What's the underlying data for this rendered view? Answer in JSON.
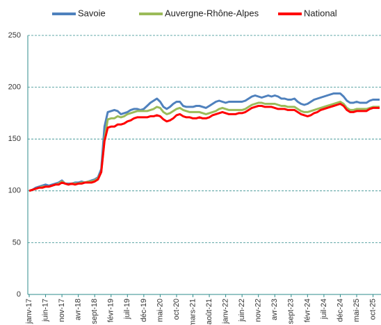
{
  "chart_data": {
    "type": "line",
    "categories": [
      "janv-17",
      null,
      null,
      null,
      null,
      "juin-17",
      null,
      null,
      null,
      null,
      "nov-17",
      null,
      null,
      null,
      null,
      "avr-18",
      null,
      null,
      null,
      null,
      "sept-18",
      null,
      null,
      null,
      null,
      "févr-19",
      null,
      null,
      null,
      null,
      "juil-19",
      null,
      null,
      null,
      null,
      "déc-19",
      null,
      null,
      null,
      null,
      "mai-20",
      null,
      null,
      null,
      null,
      "oct-20",
      null,
      null,
      null,
      null,
      "mars-21",
      null,
      null,
      null,
      null,
      "août-21",
      null,
      null,
      null,
      null,
      "janv-22",
      null,
      null,
      null,
      null,
      "juin-22",
      null,
      null,
      null,
      null,
      "nov-22",
      null,
      null,
      null,
      null,
      "avr-23",
      null,
      null,
      null,
      null,
      "sept-23",
      null,
      null,
      null,
      null,
      "févr-24",
      null,
      null,
      null,
      null,
      "juil-24",
      null,
      null,
      null,
      null,
      "déc-24",
      null,
      null,
      null,
      null,
      "mai-25",
      null,
      null,
      null,
      null,
      "oct-25",
      null,
      null
    ],
    "series": [
      {
        "name": "Savoie",
        "color": "#4f81bd",
        "values": [
          100,
          101,
          103,
          104,
          105,
          106,
          105,
          106,
          107,
          108,
          110,
          107,
          107,
          107,
          108,
          108,
          109,
          108,
          109,
          110,
          111,
          113,
          121,
          162,
          176,
          177,
          178,
          177,
          174,
          175,
          176,
          178,
          179,
          179,
          178,
          179,
          182,
          185,
          187,
          189,
          186,
          181,
          179,
          181,
          184,
          186,
          186,
          182,
          181,
          181,
          181,
          182,
          182,
          181,
          180,
          182,
          184,
          186,
          187,
          186,
          185,
          186,
          186,
          186,
          186,
          186,
          187,
          189,
          191,
          192,
          191,
          190,
          191,
          192,
          191,
          192,
          191,
          189,
          189,
          188,
          188,
          189,
          186,
          184,
          183,
          184,
          186,
          188,
          189,
          190,
          191,
          192,
          193,
          194,
          194,
          194,
          191,
          187,
          185,
          185,
          186,
          185,
          185,
          185,
          187,
          188,
          188,
          188
        ]
      },
      {
        "name": "Auvergne-Rhône-Alpes",
        "color": "#9bbb59",
        "values": [
          100,
          101,
          102,
          103,
          104,
          104,
          104,
          105,
          106,
          107,
          109,
          107,
          106,
          107,
          107,
          107,
          108,
          108,
          109,
          109,
          110,
          112,
          118,
          150,
          169,
          170,
          170,
          172,
          171,
          172,
          174,
          175,
          176,
          177,
          177,
          177,
          177,
          178,
          179,
          181,
          180,
          176,
          174,
          175,
          177,
          179,
          180,
          178,
          177,
          176,
          176,
          176,
          176,
          175,
          174,
          175,
          176,
          177,
          179,
          180,
          179,
          178,
          178,
          178,
          178,
          178,
          179,
          181,
          183,
          184,
          185,
          185,
          184,
          184,
          184,
          184,
          183,
          182,
          182,
          181,
          181,
          181,
          179,
          177,
          176,
          176,
          177,
          178,
          179,
          180,
          181,
          182,
          183,
          184,
          185,
          186,
          184,
          180,
          178,
          178,
          179,
          179,
          179,
          179,
          180,
          181,
          181,
          181
        ]
      },
      {
        "name": "National",
        "color": "#ff0000",
        "values": [
          100,
          101,
          102,
          103,
          103,
          104,
          104,
          105,
          106,
          106,
          108,
          107,
          106,
          107,
          106,
          107,
          107,
          108,
          108,
          108,
          109,
          111,
          118,
          148,
          161,
          162,
          162,
          164,
          164,
          165,
          167,
          168,
          170,
          171,
          171,
          171,
          171,
          172,
          172,
          173,
          172,
          169,
          167,
          168,
          170,
          173,
          174,
          172,
          171,
          171,
          170,
          170,
          171,
          170,
          170,
          171,
          173,
          174,
          175,
          176,
          175,
          174,
          174,
          174,
          175,
          175,
          176,
          178,
          180,
          181,
          182,
          182,
          181,
          181,
          181,
          180,
          179,
          179,
          179,
          178,
          178,
          178,
          176,
          174,
          173,
          172,
          173,
          175,
          176,
          178,
          179,
          180,
          181,
          182,
          183,
          184,
          182,
          178,
          176,
          176,
          177,
          177,
          177,
          177,
          179,
          180,
          180,
          180
        ]
      }
    ],
    "ylim": [
      0,
      250
    ],
    "yticks": [
      0,
      50,
      100,
      150,
      200,
      250
    ],
    "grid": true,
    "legend": "top"
  }
}
